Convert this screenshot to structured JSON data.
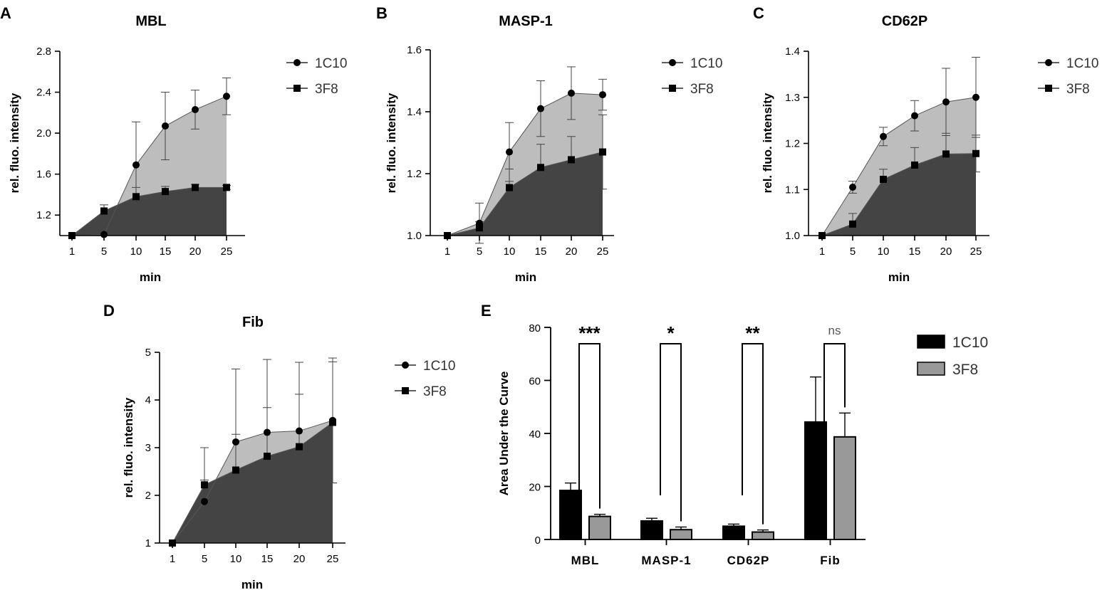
{
  "chart_data": [
    {
      "panel": "A",
      "type": "area",
      "title": "MBL",
      "xlabel": "min",
      "ylabel": "rel. fluo. intensity",
      "x": [
        1,
        5,
        10,
        15,
        20,
        25
      ],
      "ylim": [
        1.0,
        2.8
      ],
      "yticks": [
        "1.2",
        "1.6",
        "2.0",
        "2.4",
        "2.8"
      ],
      "series": [
        {
          "name": "1C10",
          "marker": "circle",
          "values": [
            1.0,
            1.01,
            1.69,
            2.07,
            2.23,
            2.36
          ],
          "err": [
            0,
            0,
            0.42,
            0.33,
            0.19,
            0.18
          ]
        },
        {
          "name": "3F8",
          "marker": "square",
          "values": [
            1.0,
            1.24,
            1.38,
            1.43,
            1.47,
            1.47
          ],
          "err": [
            0,
            0.06,
            0.09,
            0.05,
            0.03,
            0.02
          ]
        }
      ]
    },
    {
      "panel": "B",
      "type": "area",
      "title": "MASP-1",
      "xlabel": "min",
      "ylabel": "rel. fluo. intensity",
      "x": [
        1,
        5,
        10,
        15,
        20,
        25
      ],
      "ylim": [
        1.0,
        1.6
      ],
      "yticks": [
        "1.0",
        "1.2",
        "1.4",
        "1.6"
      ],
      "series": [
        {
          "name": "1C10",
          "marker": "circle",
          "values": [
            1.0,
            1.04,
            1.27,
            1.41,
            1.46,
            1.455
          ],
          "err": [
            0,
            0.065,
            0.095,
            0.09,
            0.085,
            0.05
          ]
        },
        {
          "name": "3F8",
          "marker": "square",
          "values": [
            1.0,
            1.025,
            1.155,
            1.22,
            1.245,
            1.27
          ],
          "err": [
            0,
            0.02,
            0.06,
            0.075,
            0.075,
            0.12
          ]
        }
      ]
    },
    {
      "panel": "C",
      "type": "area",
      "title": "CD62P",
      "xlabel": "min",
      "ylabel": "rel. fluo. intensity",
      "x": [
        1,
        5,
        10,
        15,
        20,
        25
      ],
      "ylim": [
        1.0,
        1.4
      ],
      "yticks": [
        "1.0",
        "1.1",
        "1.2",
        "1.3",
        "1.4"
      ],
      "series": [
        {
          "name": "1C10",
          "marker": "circle",
          "values": [
            1.0,
            1.105,
            1.215,
            1.26,
            1.29,
            1.3
          ],
          "err": [
            0,
            0.013,
            0.02,
            0.033,
            0.073,
            0.087
          ]
        },
        {
          "name": "3F8",
          "marker": "square",
          "values": [
            1.0,
            1.025,
            1.122,
            1.153,
            1.177,
            1.178
          ],
          "err": [
            0,
            0.023,
            0.022,
            0.038,
            0.045,
            0.04
          ]
        }
      ]
    },
    {
      "panel": "D",
      "type": "area",
      "title": "Fib",
      "xlabel": "min",
      "ylabel": "rel. fluo. intensity",
      "x": [
        1,
        5,
        10,
        15,
        20,
        25
      ],
      "ylim": [
        1,
        5
      ],
      "yticks": [
        "1",
        "2",
        "3",
        "4",
        "5"
      ],
      "series": [
        {
          "name": "1C10",
          "marker": "circle",
          "values": [
            1.0,
            1.87,
            3.12,
            3.32,
            3.35,
            3.57
          ],
          "err": [
            0,
            0.45,
            1.53,
            1.53,
            1.44,
            1.31
          ]
        },
        {
          "name": "3F8",
          "marker": "square",
          "values": [
            1.0,
            2.22,
            2.53,
            2.82,
            3.02,
            3.53
          ],
          "err": [
            0,
            0.78,
            0.75,
            1.02,
            1.1,
            1.27
          ]
        }
      ]
    },
    {
      "panel": "E",
      "type": "bar",
      "title": "",
      "xlabel": "",
      "ylabel": "Area Under the Curve",
      "categories": [
        "MBL",
        "MASP-1",
        "CD62P",
        "Fib"
      ],
      "ylim": [
        0,
        80
      ],
      "yticks": [
        "0",
        "20",
        "40",
        "60",
        "80"
      ],
      "series": [
        {
          "name": "1C10",
          "color": "#000000",
          "values": [
            18.5,
            7.0,
            5.0,
            44.3
          ],
          "err": [
            2.8,
            1.0,
            0.8,
            17.0
          ]
        },
        {
          "name": "3F8",
          "color": "#999999",
          "values": [
            8.7,
            3.7,
            2.8,
            38.7
          ],
          "err": [
            0.8,
            1.0,
            0.8,
            9.0
          ]
        }
      ],
      "significance": [
        "***",
        "*",
        "**",
        "ns"
      ]
    }
  ],
  "panel_letters": [
    "A",
    "B",
    "C",
    "D",
    "E"
  ],
  "colors": {
    "upper_fill": "#bdbdbd",
    "lower_fill": "#444444",
    "line": "#555555"
  }
}
